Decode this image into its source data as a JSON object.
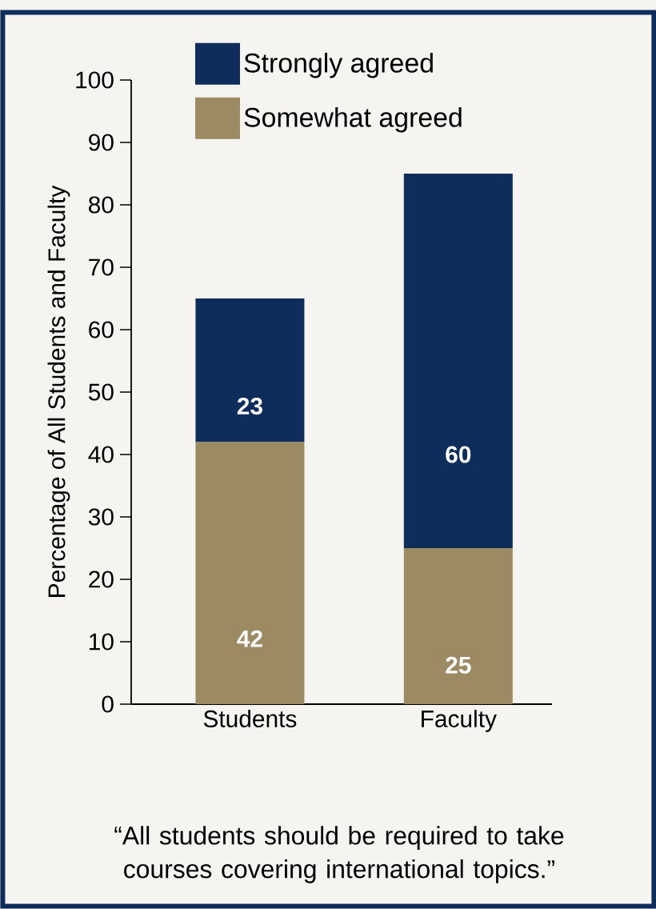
{
  "chart_data": {
    "type": "bar",
    "stacked": true,
    "ylabel": "Percentage of All Students and Faculty",
    "categories": [
      "Students",
      "Faculty"
    ],
    "series": [
      {
        "name": "Somewhat agreed",
        "color": "#9b8a62",
        "values": [
          42,
          25
        ]
      },
      {
        "name": "Strongly agreed",
        "color": "#0f2d5a",
        "values": [
          23,
          60
        ]
      }
    ],
    "ylim": [
      0,
      100
    ],
    "yticks": [
      0,
      10,
      20,
      30,
      40,
      50,
      60,
      70,
      80,
      90,
      100
    ],
    "data_labels": true,
    "legend": "top left",
    "annotations": [
      "“All students should be required to take courses covering international topics.”"
    ]
  }
}
